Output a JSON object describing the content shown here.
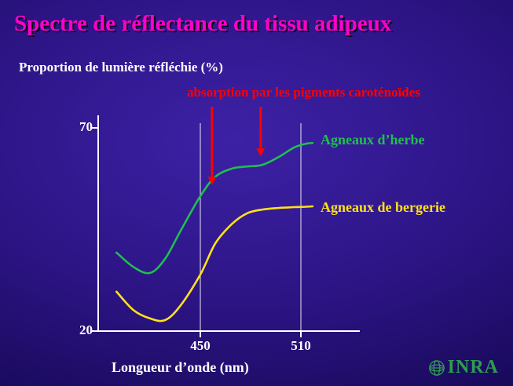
{
  "slide": {
    "title": "Spectre de réflectance du tissu adipeux",
    "logo_text": "INRA"
  },
  "colors": {
    "title": "#ff00cc",
    "text": "#ffffff",
    "axis": "#ffffff",
    "annotation": "#ff0000",
    "logo": "#2d9e4e"
  },
  "chart_data": {
    "type": "line",
    "title": "Spectre de réflectance du tissu adipeux",
    "ylabel": "Proportion de lumière réfléchie (%)",
    "xlabel": "Longueur d’onde (nm)",
    "annotation": "absorption par les pigments caroténoïdes",
    "xlim": [
      400,
      517
    ],
    "ylim": [
      20,
      70
    ],
    "y_ticks": [
      20,
      70
    ],
    "x_ticks": [
      450,
      510
    ],
    "gridlines": [
      450,
      510
    ],
    "x": [
      400,
      410,
      420,
      429,
      438,
      450,
      459,
      469,
      478,
      487,
      497,
      506,
      513,
      517
    ],
    "series": [
      {
        "name": "Agneaux d’herbe",
        "color": "#1fbf4f",
        "values": [
          39.3,
          35.8,
          34.3,
          37.8,
          44.5,
          53.2,
          58.0,
          60.0,
          60.5,
          60.9,
          62.9,
          65.2,
          66.1,
          66.3
        ]
      },
      {
        "name": "Agneaux de bergerie",
        "color": "#ffe11a",
        "values": [
          29.7,
          25.2,
          23.1,
          22.7,
          26.2,
          33.9,
          41.6,
          46.4,
          49.0,
          49.9,
          50.3,
          50.5,
          50.6,
          50.7
        ]
      }
    ],
    "arrows": [
      {
        "x": 457,
        "tip_value": 56.0
      },
      {
        "x": 486,
        "tip_value": 63.0
      }
    ]
  }
}
